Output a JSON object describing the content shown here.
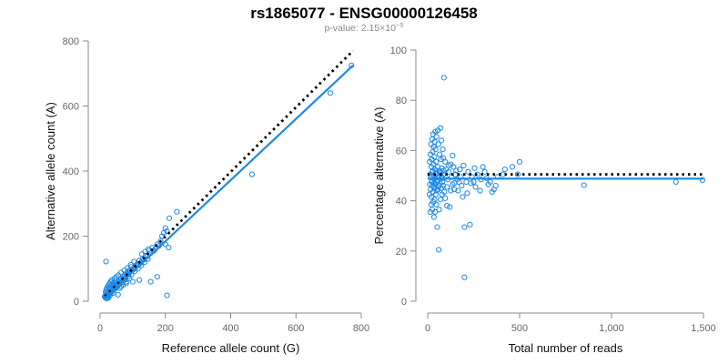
{
  "figure": {
    "title": "rs1865077 - ENSG00000126458",
    "subtitle_prefix": "p-value: 2.15×10",
    "subtitle_exponent": "−5"
  },
  "colors": {
    "points": "#1e88e5",
    "fit_line": "#1e88e5",
    "reference_line": "#000000",
    "axis": "#888888",
    "tick_text": "#666666"
  },
  "chart_data": [
    {
      "type": "scatter",
      "title": "",
      "xlabel": "Reference allele count (G)",
      "ylabel": "Alternative allele count (A)",
      "xlim": [
        0,
        800
      ],
      "ylim": [
        0,
        800
      ],
      "xticks": [
        0,
        200,
        400,
        600,
        800
      ],
      "yticks": [
        0,
        200,
        400,
        600,
        800
      ],
      "xtick_labels": [
        "0",
        "200",
        "400",
        "600",
        "800"
      ],
      "ytick_labels": [
        "0",
        "200",
        "400",
        "600",
        "800"
      ],
      "grid": false,
      "lines": [
        {
          "role": "expected",
          "style": "dotted",
          "x": [
            15,
            775
          ],
          "y": [
            15,
            770
          ]
        },
        {
          "role": "fit",
          "style": "solid",
          "x": [
            15,
            775
          ],
          "y": [
            10,
            725
          ]
        }
      ],
      "points": [
        [
          770,
          725
        ],
        [
          705,
          640
        ],
        [
          465,
          390
        ],
        [
          235,
          275
        ],
        [
          212,
          255
        ],
        [
          200,
          225
        ],
        [
          205,
          215
        ],
        [
          195,
          210
        ],
        [
          190,
          200
        ],
        [
          200,
          175
        ],
        [
          210,
          165
        ],
        [
          185,
          185
        ],
        [
          175,
          175
        ],
        [
          160,
          165
        ],
        [
          150,
          155
        ],
        [
          140,
          140
        ],
        [
          130,
          130
        ],
        [
          120,
          125
        ],
        [
          115,
          115
        ],
        [
          110,
          110
        ],
        [
          105,
          100
        ],
        [
          95,
          105
        ],
        [
          90,
          95
        ],
        [
          85,
          90
        ],
        [
          80,
          85
        ],
        [
          75,
          80
        ],
        [
          70,
          75
        ],
        [
          65,
          70
        ],
        [
          60,
          65
        ],
        [
          55,
          60
        ],
        [
          50,
          55
        ],
        [
          45,
          50
        ],
        [
          40,
          45
        ],
        [
          35,
          40
        ],
        [
          30,
          35
        ],
        [
          25,
          30
        ],
        [
          20,
          25
        ],
        [
          18,
          20
        ],
        [
          22,
          18
        ],
        [
          28,
          26
        ],
        [
          33,
          30
        ],
        [
          38,
          35
        ],
        [
          42,
          40
        ],
        [
          48,
          44
        ],
        [
          52,
          50
        ],
        [
          58,
          54
        ],
        [
          62,
          60
        ],
        [
          68,
          62
        ],
        [
          72,
          70
        ],
        [
          78,
          72
        ],
        [
          82,
          80
        ],
        [
          88,
          84
        ],
        [
          92,
          90
        ],
        [
          98,
          95
        ],
        [
          102,
          98
        ],
        [
          108,
          104
        ],
        [
          112,
          108
        ],
        [
          118,
          112
        ],
        [
          125,
          118
        ],
        [
          135,
          128
        ],
        [
          145,
          138
        ],
        [
          155,
          148
        ],
        [
          165,
          155
        ],
        [
          170,
          162
        ],
        [
          180,
          170
        ],
        [
          18,
          122
        ],
        [
          155,
          60
        ],
        [
          175,
          75
        ],
        [
          205,
          18
        ],
        [
          120,
          65
        ],
        [
          100,
          60
        ],
        [
          80,
          55
        ],
        [
          60,
          40
        ],
        [
          55,
          20
        ],
        [
          40,
          25
        ],
        [
          30,
          18
        ],
        [
          25,
          10
        ],
        [
          20,
          8
        ],
        [
          15,
          12
        ],
        [
          17,
          28
        ],
        [
          19,
          35
        ],
        [
          21,
          40
        ],
        [
          23,
          45
        ],
        [
          26,
          50
        ],
        [
          29,
          55
        ],
        [
          32,
          60
        ],
        [
          36,
          65
        ],
        [
          44,
          70
        ],
        [
          50,
          75
        ],
        [
          56,
          80
        ],
        [
          64,
          88
        ],
        [
          74,
          95
        ],
        [
          84,
          102
        ],
        [
          94,
          112
        ],
        [
          104,
          122
        ],
        [
          128,
          145
        ],
        [
          138,
          152
        ],
        [
          148,
          160
        ],
        [
          45,
          38
        ],
        [
          35,
          28
        ],
        [
          27,
          22
        ],
        [
          24,
          15
        ],
        [
          16,
          16
        ],
        [
          14,
          14
        ],
        [
          19,
          12
        ],
        [
          26,
          19
        ],
        [
          31,
          24
        ],
        [
          37,
          31
        ],
        [
          43,
          36
        ],
        [
          49,
          41
        ],
        [
          54,
          47
        ],
        [
          59,
          52
        ],
        [
          66,
          57
        ],
        [
          71,
          63
        ],
        [
          76,
          66
        ],
        [
          86,
          75
        ],
        [
          96,
          82
        ],
        [
          106,
          92
        ],
        [
          116,
          100
        ],
        [
          126,
          110
        ],
        [
          136,
          120
        ],
        [
          146,
          130
        ],
        [
          64,
          45
        ],
        [
          70,
          50
        ],
        [
          80,
          60
        ],
        [
          90,
          70
        ],
        [
          28,
          40
        ],
        [
          34,
          48
        ],
        [
          39,
          55
        ],
        [
          46,
          62
        ]
      ]
    },
    {
      "type": "scatter",
      "title": "",
      "xlabel": "Total number of reads",
      "ylabel": "Percentage alternative (A)",
      "xlim": [
        0,
        1500
      ],
      "ylim": [
        0,
        100
      ],
      "xticks": [
        0,
        500,
        1000,
        1500
      ],
      "yticks": [
        0,
        20,
        40,
        60,
        80,
        100
      ],
      "xtick_labels": [
        "0",
        "500",
        "1,000",
        "1,500"
      ],
      "ytick_labels": [
        "0",
        "20",
        "40",
        "60",
        "80",
        "100"
      ],
      "grid": false,
      "lines": [
        {
          "role": "expected",
          "style": "dotted",
          "x": [
            0,
            1500
          ],
          "y": [
            50.5,
            50.5
          ]
        },
        {
          "role": "fit",
          "style": "solid",
          "x": [
            0,
            1500
          ],
          "y": [
            48.8,
            48.8
          ]
        }
      ],
      "points": [
        [
          1495,
          48.2
        ],
        [
          1350,
          47.5
        ],
        [
          850,
          46.2
        ],
        [
          500,
          55.5
        ],
        [
          490,
          50.5
        ],
        [
          460,
          53.5
        ],
        [
          420,
          52.5
        ],
        [
          410,
          50.5
        ],
        [
          380,
          49.5
        ],
        [
          360,
          44.5
        ],
        [
          350,
          43.5
        ],
        [
          340,
          47.5
        ],
        [
          330,
          46.5
        ],
        [
          310,
          51.5
        ],
        [
          300,
          53.5
        ],
        [
          290,
          48.5
        ],
        [
          270,
          50.5
        ],
        [
          260,
          45.5
        ],
        [
          250,
          47.5
        ],
        [
          240,
          49.5
        ],
        [
          230,
          30.5
        ],
        [
          220,
          51.5
        ],
        [
          210,
          47.5
        ],
        [
          200,
          29.5
        ],
        [
          200,
          9.5
        ],
        [
          190,
          41.5
        ],
        [
          180,
          49.5
        ],
        [
          175,
          52.5
        ],
        [
          170,
          47.5
        ],
        [
          160,
          48.5
        ],
        [
          150,
          50.5
        ],
        [
          145,
          44.5
        ],
        [
          140,
          53.5
        ],
        [
          135,
          46.5
        ],
        [
          130,
          49.5
        ],
        [
          125,
          54.5
        ],
        [
          120,
          37.5
        ],
        [
          115,
          51.5
        ],
        [
          110,
          48.5
        ],
        [
          105,
          45.5
        ],
        [
          100,
          52.5
        ],
        [
          95,
          55.5
        ],
        [
          90,
          43.5
        ],
        [
          88,
          89
        ],
        [
          85,
          50.5
        ],
        [
          82,
          60.5
        ],
        [
          80,
          47.5
        ],
        [
          78,
          42.5
        ],
        [
          75,
          49.5
        ],
        [
          72,
          56.5
        ],
        [
          70,
          40.5
        ],
        [
          68,
          51.5
        ],
        [
          65,
          58.5
        ],
        [
          62,
          36.5
        ],
        [
          60,
          49.5
        ],
        [
          58,
          62.5
        ],
        [
          56,
          44.5
        ],
        [
          54,
          53.5
        ],
        [
          52,
          29.5
        ],
        [
          50,
          47.5
        ],
        [
          48,
          65.5
        ],
        [
          47,
          38.5
        ],
        [
          46,
          55.5
        ],
        [
          45,
          50.5
        ],
        [
          44,
          42.5
        ],
        [
          43,
          60.5
        ],
        [
          42,
          46.5
        ],
        [
          41,
          67.5
        ],
        [
          40,
          35.5
        ],
        [
          39,
          52.5
        ],
        [
          38,
          63.5
        ],
        [
          37,
          40.5
        ],
        [
          36,
          57.5
        ],
        [
          35,
          48.5
        ],
        [
          34,
          33.5
        ],
        [
          33,
          61.5
        ],
        [
          32,
          45.5
        ],
        [
          31,
          54.5
        ],
        [
          30,
          39.5
        ],
        [
          29,
          66.5
        ],
        [
          28,
          43.5
        ],
        [
          27,
          59.5
        ],
        [
          26,
          51.5
        ],
        [
          25,
          36.5
        ],
        [
          24,
          64.5
        ],
        [
          23,
          47.5
        ],
        [
          22,
          56.5
        ],
        [
          21,
          41.5
        ],
        [
          20,
          53.5
        ],
        [
          19,
          38.5
        ],
        [
          18,
          62.5
        ],
        [
          17,
          49.5
        ],
        [
          16,
          44.5
        ],
        [
          15,
          58.5
        ],
        [
          14,
          35.5
        ],
        [
          13,
          50.5
        ],
        [
          12,
          46.5
        ],
        [
          11,
          55.5
        ],
        [
          10,
          42.5
        ],
        [
          60,
          20.5
        ],
        [
          70,
          69
        ],
        [
          55,
          68
        ],
        [
          75,
          64
        ],
        [
          85,
          57
        ],
        [
          95,
          41
        ],
        [
          105,
          38
        ],
        [
          115,
          54
        ],
        [
          125,
          44
        ],
        [
          135,
          58
        ],
        [
          145,
          47
        ],
        [
          155,
          52
        ],
        [
          165,
          44
        ],
        [
          185,
          46
        ],
        [
          195,
          54
        ],
        [
          215,
          43
        ],
        [
          235,
          47
        ],
        [
          255,
          53
        ],
        [
          285,
          44
        ],
        [
          320,
          49
        ],
        [
          370,
          46
        ],
        [
          24,
          48
        ],
        [
          26,
          46
        ],
        [
          28,
          52
        ],
        [
          33,
          50
        ],
        [
          36,
          47
        ],
        [
          38,
          45
        ],
        [
          41,
          49
        ],
        [
          46,
          51
        ],
        [
          49,
          44
        ],
        [
          53,
          48
        ],
        [
          57,
          50
        ],
        [
          61,
          46
        ],
        [
          64,
          52
        ],
        [
          67,
          47
        ],
        [
          71,
          51
        ],
        [
          74,
          45
        ],
        [
          77,
          53
        ],
        [
          81,
          49
        ],
        [
          84,
          46
        ],
        [
          87,
          52
        ]
      ]
    }
  ]
}
